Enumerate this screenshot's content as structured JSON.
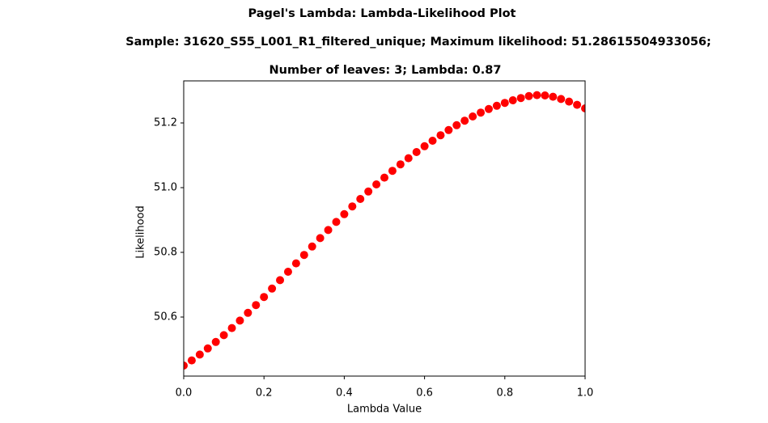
{
  "chart_data": {
    "type": "scatter",
    "title": "Pagel's Lambda: Lambda-Likelihood Plot",
    "subtitle": [
      "Sample: 31620_S55_L001_R1_filtered_unique; Maximum likelihood: 51.28615504933056;",
      "Number of leaves: 3; Lambda: 0.87"
    ],
    "xlabel": "Lambda Value",
    "ylabel": "Likelihood",
    "x": [
      0,
      0.02,
      0.04,
      0.06,
      0.08,
      0.1,
      0.12,
      0.14,
      0.16,
      0.18,
      0.2,
      0.22,
      0.24,
      0.26,
      0.28,
      0.3,
      0.32,
      0.34,
      0.36,
      0.38,
      0.4,
      0.42,
      0.44,
      0.46,
      0.48,
      0.5,
      0.52,
      0.54,
      0.56,
      0.58,
      0.6,
      0.62,
      0.64,
      0.66,
      0.68,
      0.7,
      0.72,
      0.74,
      0.76,
      0.78,
      0.8,
      0.82,
      0.84,
      0.86,
      0.88,
      0.9,
      0.92,
      0.94,
      0.96,
      0.98,
      1
    ],
    "values": [
      50.45,
      50.466,
      50.484,
      50.503,
      50.523,
      50.544,
      50.566,
      50.589,
      50.613,
      50.637,
      50.662,
      50.688,
      50.714,
      50.74,
      50.766,
      50.792,
      50.818,
      50.844,
      50.869,
      50.894,
      50.918,
      50.942,
      50.965,
      50.988,
      51.01,
      51.031,
      51.052,
      51.072,
      51.091,
      51.11,
      51.128,
      51.145,
      51.162,
      51.178,
      51.193,
      51.207,
      51.22,
      51.232,
      51.243,
      51.253,
      51.262,
      51.27,
      51.277,
      51.283,
      51.286,
      51.285,
      51.281,
      51.274,
      51.266,
      51.256,
      51.245
    ],
    "color": "#ff0000",
    "xlim": [
      0,
      1
    ],
    "ylim": [
      50.4175,
      51.33
    ],
    "xticks": [
      {
        "value": 0,
        "label": "0.0"
      },
      0.2,
      0.4,
      0.6,
      0.8,
      {
        "value": 1,
        "label": "1.0"
      }
    ],
    "yticks": [
      50.6,
      50.8,
      {
        "value": 51,
        "label": "51.0"
      },
      51.2
    ],
    "grid": false
  }
}
